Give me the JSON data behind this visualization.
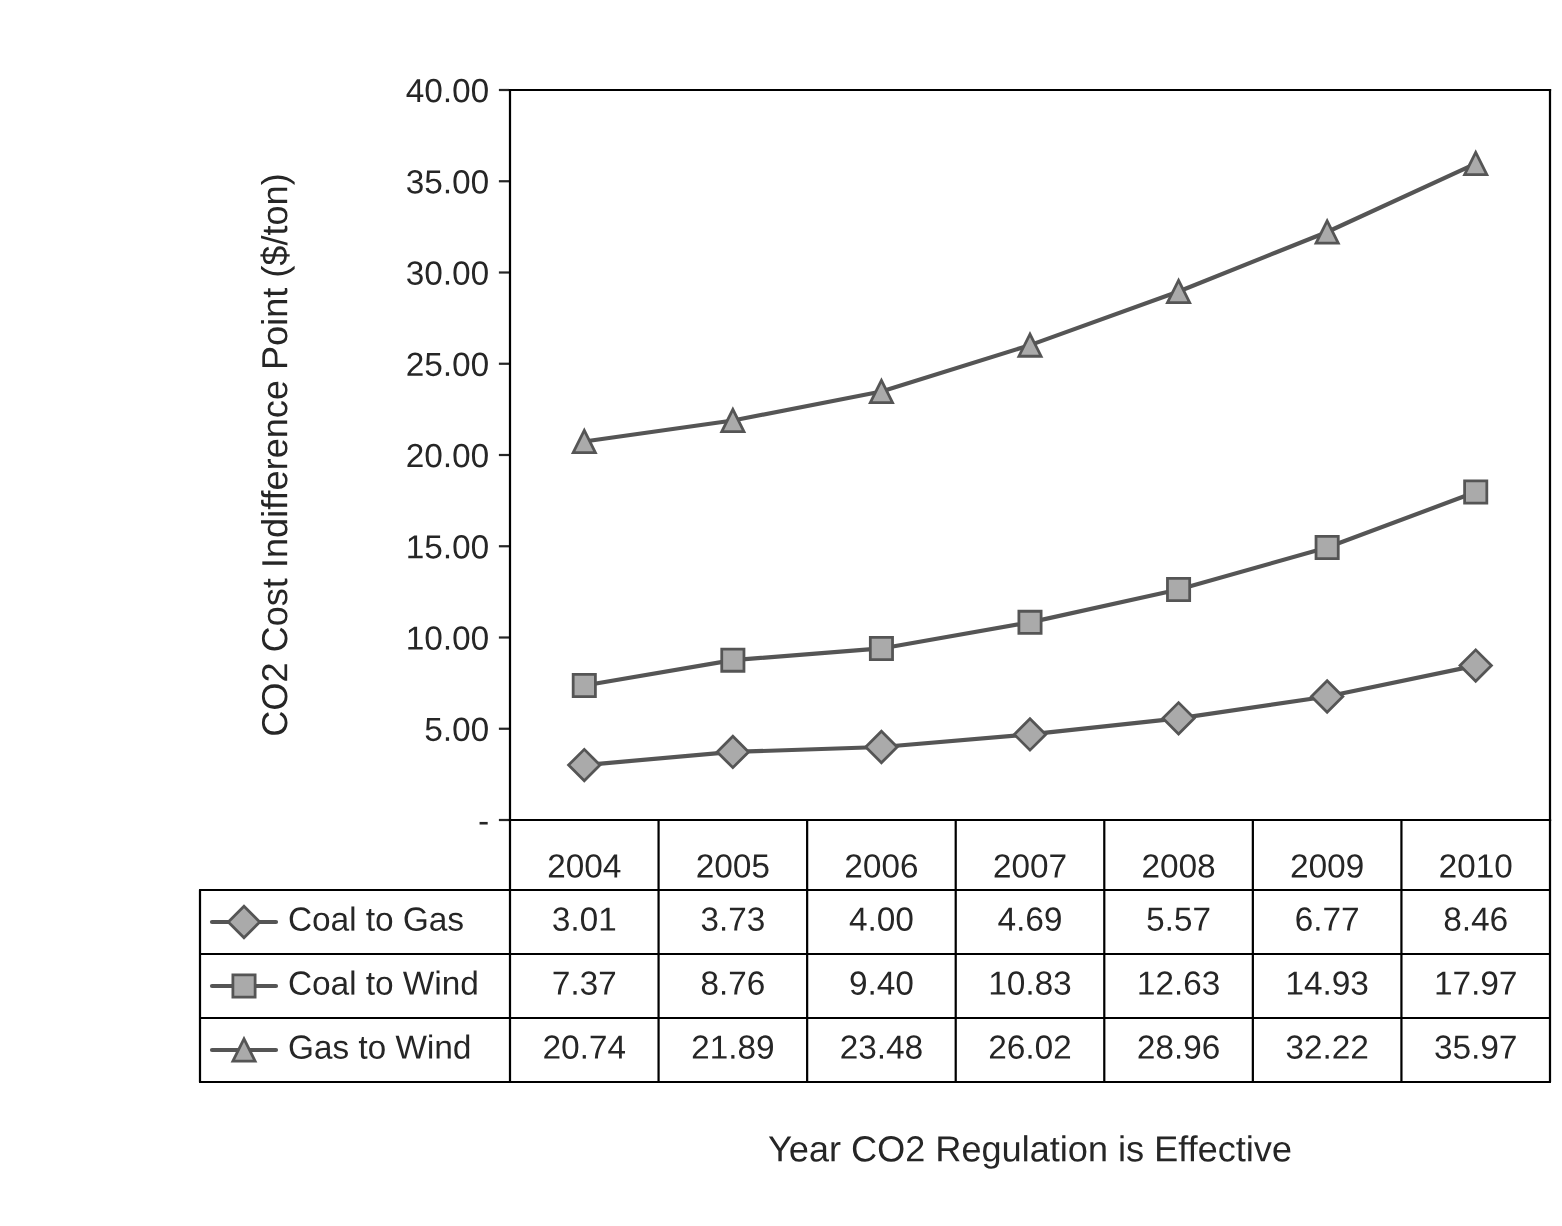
{
  "chart_data": {
    "type": "line",
    "ylabel": "CO2 Cost Indifference Point ($/ton)",
    "annotations": [
      "Year CO2 Regulation is Effective"
    ],
    "categories": [
      "2004",
      "2005",
      "2006",
      "2007",
      "2008",
      "2009",
      "2010"
    ],
    "ylim": [
      0,
      40
    ],
    "yticks": [
      {
        "value": 0,
        "label": "-"
      },
      {
        "value": 5,
        "label": "5.00"
      },
      {
        "value": 10,
        "label": "10.00"
      },
      {
        "value": 15,
        "label": "15.00"
      },
      {
        "value": 20,
        "label": "20.00"
      },
      {
        "value": 25,
        "label": "25.00"
      },
      {
        "value": 30,
        "label": "30.00"
      },
      {
        "value": 35,
        "label": "35.00"
      },
      {
        "value": 40,
        "label": "40.00"
      }
    ],
    "grid": false,
    "legend": "bottom",
    "line_style": "solid",
    "series": [
      {
        "name": "Coal to Gas",
        "color": "#555555",
        "marker": "diamond",
        "values": [
          3.01,
          3.73,
          4.0,
          4.69,
          5.57,
          6.77,
          8.46
        ],
        "value_labels": [
          "3.01",
          "3.73",
          "4.00",
          "4.69",
          "5.57",
          "6.77",
          "8.46"
        ]
      },
      {
        "name": "Coal to Wind",
        "color": "#555555",
        "marker": "square",
        "values": [
          7.37,
          8.76,
          9.4,
          10.83,
          12.63,
          14.93,
          17.97
        ],
        "value_labels": [
          "7.37",
          "8.76",
          "9.40",
          "10.83",
          "12.63",
          "14.93",
          "17.97"
        ]
      },
      {
        "name": "Gas to Wind",
        "color": "#555555",
        "marker": "triangle",
        "values": [
          20.74,
          21.89,
          23.48,
          26.02,
          28.96,
          32.22,
          35.97
        ],
        "value_labels": [
          "20.74",
          "21.89",
          "23.48",
          "26.02",
          "28.96",
          "32.22",
          "35.97"
        ]
      }
    ]
  }
}
